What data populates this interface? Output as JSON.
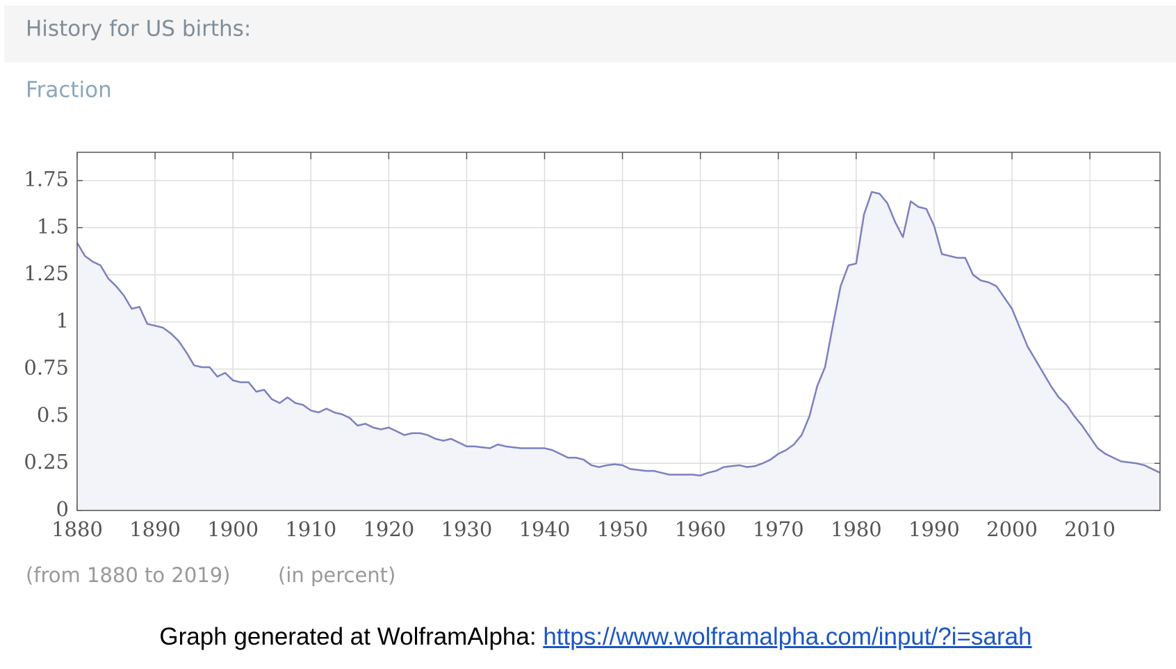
{
  "chart_data": {
    "type": "line",
    "title": "History for US births:",
    "ylabel": "Fraction",
    "annotations": [
      "(from 1880 to 2019)",
      "(in percent)"
    ],
    "x": [
      1880,
      1881,
      1882,
      1883,
      1884,
      1885,
      1886,
      1887,
      1888,
      1889,
      1890,
      1891,
      1892,
      1893,
      1894,
      1895,
      1896,
      1897,
      1898,
      1899,
      1900,
      1901,
      1902,
      1903,
      1904,
      1905,
      1906,
      1907,
      1908,
      1909,
      1910,
      1911,
      1912,
      1913,
      1914,
      1915,
      1916,
      1917,
      1918,
      1919,
      1920,
      1921,
      1922,
      1923,
      1924,
      1925,
      1926,
      1927,
      1928,
      1929,
      1930,
      1931,
      1932,
      1933,
      1934,
      1935,
      1936,
      1937,
      1938,
      1939,
      1940,
      1941,
      1942,
      1943,
      1944,
      1945,
      1946,
      1947,
      1948,
      1949,
      1950,
      1951,
      1952,
      1953,
      1954,
      1955,
      1956,
      1957,
      1958,
      1959,
      1960,
      1961,
      1962,
      1963,
      1964,
      1965,
      1966,
      1967,
      1968,
      1969,
      1970,
      1971,
      1972,
      1973,
      1974,
      1975,
      1976,
      1977,
      1978,
      1979,
      1980,
      1981,
      1982,
      1983,
      1984,
      1985,
      1986,
      1987,
      1988,
      1989,
      1990,
      1991,
      1992,
      1993,
      1994,
      1995,
      1996,
      1997,
      1998,
      1999,
      2000,
      2001,
      2002,
      2003,
      2004,
      2005,
      2006,
      2007,
      2008,
      2009,
      2010,
      2011,
      2012,
      2013,
      2014,
      2015,
      2016,
      2017,
      2018,
      2019
    ],
    "series": [
      {
        "name": "Fraction",
        "color": "#7b80c0",
        "fill": "#f3f3fa",
        "values": [
          1.42,
          1.35,
          1.32,
          1.3,
          1.23,
          1.19,
          1.14,
          1.07,
          1.08,
          0.99,
          0.98,
          0.97,
          0.94,
          0.9,
          0.84,
          0.77,
          0.76,
          0.76,
          0.71,
          0.73,
          0.69,
          0.68,
          0.68,
          0.63,
          0.64,
          0.59,
          0.57,
          0.6,
          0.57,
          0.56,
          0.53,
          0.52,
          0.54,
          0.52,
          0.51,
          0.49,
          0.45,
          0.46,
          0.44,
          0.43,
          0.44,
          0.42,
          0.4,
          0.41,
          0.41,
          0.4,
          0.38,
          0.37,
          0.38,
          0.36,
          0.34,
          0.34,
          0.335,
          0.33,
          0.35,
          0.34,
          0.335,
          0.33,
          0.33,
          0.33,
          0.33,
          0.32,
          0.3,
          0.28,
          0.28,
          0.27,
          0.24,
          0.23,
          0.24,
          0.245,
          0.24,
          0.22,
          0.215,
          0.21,
          0.21,
          0.2,
          0.19,
          0.19,
          0.19,
          0.19,
          0.185,
          0.2,
          0.21,
          0.23,
          0.235,
          0.24,
          0.23,
          0.235,
          0.25,
          0.27,
          0.3,
          0.32,
          0.35,
          0.4,
          0.5,
          0.66,
          0.76,
          0.98,
          1.19,
          1.3,
          1.31,
          1.57,
          1.69,
          1.68,
          1.63,
          1.53,
          1.45,
          1.64,
          1.61,
          1.6,
          1.51,
          1.36,
          1.35,
          1.34,
          1.34,
          1.25,
          1.22,
          1.21,
          1.19,
          1.13,
          1.07,
          0.97,
          0.87,
          0.8,
          0.73,
          0.66,
          0.6,
          0.56,
          0.5,
          0.45,
          0.39,
          0.33,
          0.3,
          0.28,
          0.26,
          0.255,
          0.25,
          0.24,
          0.22,
          0.2
        ]
      }
    ],
    "xlim": [
      1880,
      2019
    ],
    "xticks": [
      1880,
      1890,
      1900,
      1910,
      1920,
      1930,
      1940,
      1950,
      1960,
      1970,
      1980,
      1990,
      2000,
      2010
    ],
    "ylim": [
      0,
      1.9
    ],
    "yticks": [
      0,
      0.25,
      0.5,
      0.75,
      1,
      1.25,
      1.5,
      1.75
    ],
    "grid": true
  },
  "footer": {
    "text": "Graph generated at WolframAlpha:",
    "link": "https://www.wolframalpha.com/input/?i=sarah"
  }
}
